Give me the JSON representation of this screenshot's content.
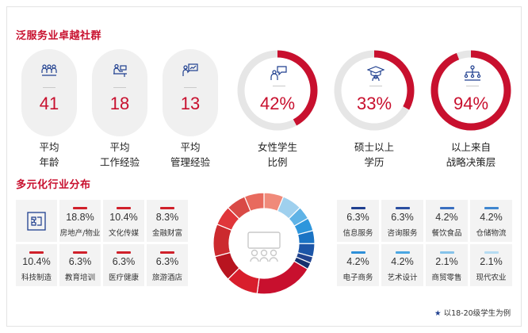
{
  "sections": {
    "community_title": "泛服务业卓越社群",
    "industry_title": "多元化行业分布"
  },
  "stats": [
    {
      "value": "41",
      "label1": "平均",
      "label2": "年龄",
      "icon": "people-group-icon"
    },
    {
      "value": "18",
      "label1": "平均",
      "label2": "工作经验",
      "icon": "desk-worker-icon"
    },
    {
      "value": "13",
      "label1": "平均",
      "label2": "管理经验",
      "icon": "presenter-board-icon"
    }
  ],
  "rings": [
    {
      "value": "42%",
      "fraction": 0.42,
      "label1": "女性学生",
      "label2": "比例",
      "icon": "speech-bubble-person-icon"
    },
    {
      "value": "33%",
      "fraction": 0.33,
      "label1": "硕士以上",
      "label2": "学历",
      "icon": "graduate-cap-icon"
    },
    {
      "value": "94%",
      "fraction": 0.94,
      "label1": "以上来自",
      "label2": "战略决策层",
      "icon": "org-hierarchy-icon"
    }
  ],
  "left_industries": [
    {
      "pct": "18.8%",
      "name": "房地产/物业"
    },
    {
      "pct": "10.4%",
      "name": "文化传媒"
    },
    {
      "pct": "8.3%",
      "name": "金融财富"
    },
    {
      "pct": "10.4%",
      "name": "科技制造"
    },
    {
      "pct": "6.3%",
      "name": "教育培训"
    },
    {
      "pct": "6.3%",
      "name": "医疗健康"
    },
    {
      "pct": "6.3%",
      "name": "旅游酒店"
    }
  ],
  "right_industries": [
    {
      "pct": "6.3%",
      "name": "信息服务"
    },
    {
      "pct": "6.3%",
      "name": "咨询服务"
    },
    {
      "pct": "4.2%",
      "name": "餐饮食品"
    },
    {
      "pct": "4.2%",
      "name": "仓储物流"
    },
    {
      "pct": "4.2%",
      "name": "电子商务"
    },
    {
      "pct": "4.2%",
      "name": "艺术设计"
    },
    {
      "pct": "2.1%",
      "name": "商贸零售"
    },
    {
      "pct": "2.1%",
      "name": "现代农业"
    }
  ],
  "footnote": "以18-20级学生为例",
  "colors": {
    "accent": "#c8102e",
    "left_bar": "#d0202a",
    "right_bars": [
      "#1f3f8f",
      "#2b4fa0",
      "#3a6fc0",
      "#3f86cf",
      "#2e8fd8",
      "#4aa6e2",
      "#86c3ea",
      "#b6dcf2"
    ],
    "ring_track": "#e6e6e6"
  }
}
